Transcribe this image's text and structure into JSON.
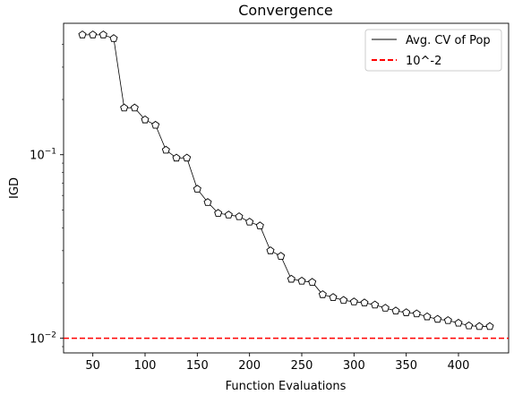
{
  "chart_data": {
    "type": "line",
    "title": "Convergence",
    "xlabel": "Function Evaluations",
    "ylabel": "IGD",
    "yscale": "log",
    "xlim": [
      22,
      448
    ],
    "ylim": [
      0.00832,
      0.52
    ],
    "grid": false,
    "legend_position": "upper right",
    "x_ticks": [
      50,
      100,
      150,
      200,
      250,
      300,
      350,
      400
    ],
    "y_major_ticks": [
      {
        "value": 0.01,
        "label": "10",
        "exp": "−2"
      },
      {
        "value": 0.1,
        "label": "10",
        "exp": "−1"
      }
    ],
    "y_minor_ticks": [
      0.009,
      0.02,
      0.03,
      0.04,
      0.05,
      0.06,
      0.07,
      0.08,
      0.09,
      0.2,
      0.3,
      0.4
    ],
    "series": [
      {
        "name": "Avg. CV of Pop",
        "color": "#000000",
        "marker": "pentagon",
        "x": [
          40,
          50,
          60,
          70,
          80,
          90,
          100,
          110,
          120,
          130,
          140,
          150,
          160,
          170,
          180,
          190,
          200,
          210,
          220,
          230,
          240,
          250,
          260,
          270,
          280,
          290,
          300,
          310,
          320,
          330,
          340,
          350,
          360,
          370,
          380,
          390,
          400,
          410,
          420,
          430
        ],
        "y": [
          0.45,
          0.45,
          0.45,
          0.43,
          0.18,
          0.18,
          0.155,
          0.145,
          0.106,
          0.096,
          0.096,
          0.065,
          0.055,
          0.048,
          0.047,
          0.046,
          0.043,
          0.041,
          0.03,
          0.028,
          0.021,
          0.0205,
          0.0202,
          0.0173,
          0.0167,
          0.0161,
          0.0158,
          0.0156,
          0.0152,
          0.0146,
          0.0141,
          0.0138,
          0.0136,
          0.0131,
          0.0127,
          0.0125,
          0.0121,
          0.0117,
          0.0116,
          0.0116
        ]
      }
    ],
    "reference_lines": [
      {
        "name": "10^-2",
        "y": 0.01,
        "color": "#ff0000",
        "style": "dashed"
      }
    ]
  }
}
